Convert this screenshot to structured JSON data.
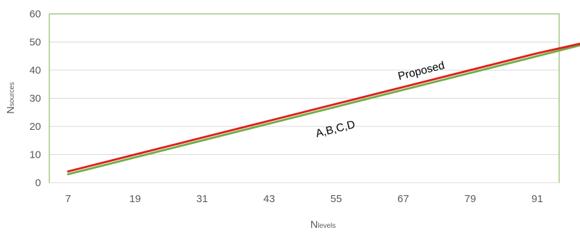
{
  "chart_data": {
    "type": "line",
    "x": [
      7,
      19,
      31,
      43,
      55,
      67,
      79,
      91,
      100
    ],
    "xticks": [
      "7",
      "19",
      "31",
      "43",
      "55",
      "67",
      "79",
      "91"
    ],
    "yticks": [
      "0",
      "10",
      "20",
      "30",
      "40",
      "50",
      "60"
    ],
    "xlim": [
      7,
      100
    ],
    "ylim": [
      0,
      60
    ],
    "grid": "horizontal",
    "xlabel": {
      "main": "N",
      "sub": "levels"
    },
    "ylabel": {
      "main": "N",
      "sub": "sources"
    },
    "series": [
      {
        "name": "A,B,C,D",
        "color": "#70ad47",
        "values": [
          3,
          9,
          15,
          21,
          27,
          33,
          39,
          45,
          49.5
        ]
      },
      {
        "name": "Proposed",
        "color": "#e0201b",
        "values": [
          4,
          10,
          16,
          22,
          28,
          34,
          40,
          46,
          50
        ]
      }
    ],
    "annotations": [
      {
        "text": "Proposed",
        "series": "Proposed",
        "x": 67
      },
      {
        "text": "A,B,C,D",
        "series": "A,B,C,D",
        "x": 55
      }
    ]
  }
}
